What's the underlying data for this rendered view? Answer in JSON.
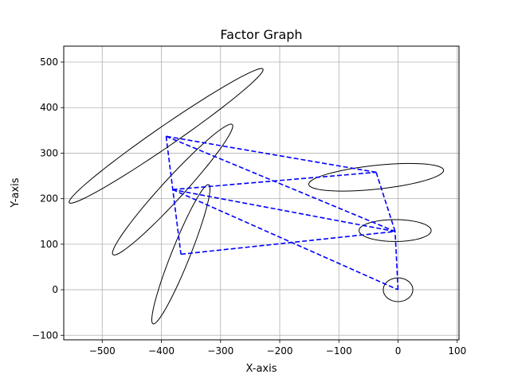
{
  "chart_data": {
    "type": "line",
    "title": "Factor Graph",
    "xlabel": "X-axis",
    "ylabel": "Y-axis",
    "xlim": [
      -565,
      103
    ],
    "ylim": [
      -110,
      535
    ],
    "xticks": [
      -500,
      -400,
      -300,
      -200,
      -100,
      0,
      100
    ],
    "yticks": [
      -100,
      0,
      100,
      200,
      300,
      400,
      500
    ],
    "grid": true,
    "edge_color": "#0000ff",
    "ellipse_color": "#000000",
    "nodes": [
      {
        "id": 0,
        "x": 0,
        "y": 0
      },
      {
        "id": 1,
        "x": -5,
        "y": 128
      },
      {
        "id": 2,
        "x": -37,
        "y": 258
      },
      {
        "id": 3,
        "x": -392,
        "y": 337
      },
      {
        "id": 4,
        "x": -381,
        "y": 220
      },
      {
        "id": 5,
        "x": -367,
        "y": 78
      }
    ],
    "edges": [
      [
        0,
        1
      ],
      [
        1,
        2
      ],
      [
        2,
        3
      ],
      [
        3,
        5
      ],
      [
        5,
        1
      ],
      [
        1,
        4
      ],
      [
        4,
        2
      ],
      [
        3,
        1
      ],
      [
        4,
        0
      ]
    ],
    "ellipses": [
      {
        "cx": 0,
        "cy": 0,
        "rx": 25,
        "ry": 26,
        "angle": 0
      },
      {
        "cx": -5,
        "cy": 130,
        "rx": 61,
        "ry": 24,
        "angle": 0
      },
      {
        "cx": -37,
        "cy": 247,
        "rx": 115,
        "ry": 26,
        "angle": 8
      },
      {
        "cx": -392,
        "cy": 338,
        "rx": 220,
        "ry": 20,
        "angle": 42
      },
      {
        "cx": -381,
        "cy": 220,
        "rx": 175,
        "ry": 20,
        "angle": 55
      },
      {
        "cx": -367,
        "cy": 78,
        "rx": 160,
        "ry": 16,
        "angle": 73
      }
    ]
  }
}
